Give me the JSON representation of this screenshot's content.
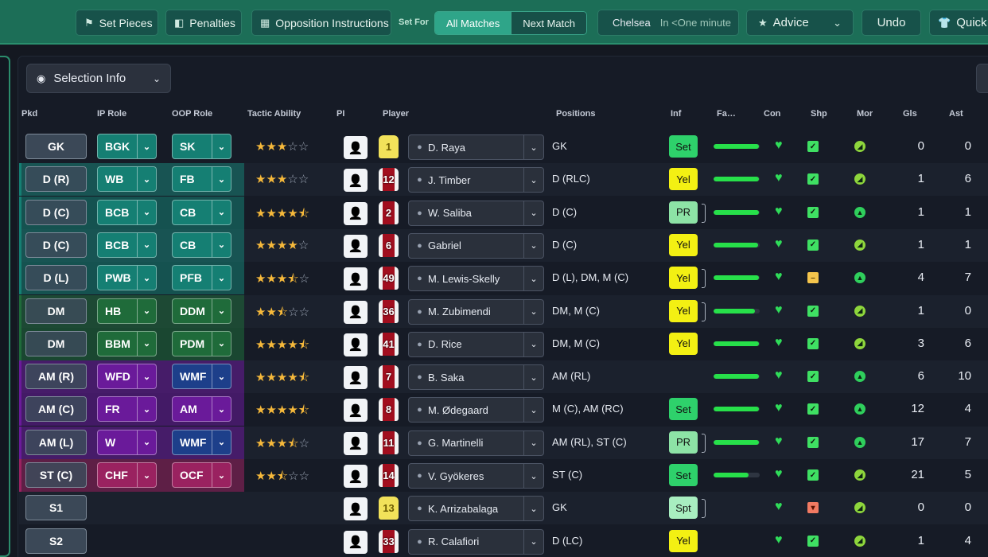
{
  "toolbar": {
    "set_pieces": "Set Pieces",
    "penalties": "Penalties",
    "opposition": "Opposition Instructions",
    "set_for": "Set For",
    "all_matches": "All Matches",
    "next_match": "Next Match",
    "opponent": "Chelsea",
    "opponent_time": "In <One minute",
    "advice": "Advice",
    "undo": "Undo",
    "quick": "Quick"
  },
  "selection_info": "Selection Info",
  "headers": {
    "pkd": "Pkd",
    "ip_role": "IP Role",
    "oop_role": "OOP Role",
    "tactic_ability": "Tactic Ability",
    "pi": "PI",
    "player": "Player",
    "positions": "Positions",
    "inf": "Inf",
    "fa": "Fa…",
    "con": "Con",
    "shp": "Shp",
    "mor": "Mor",
    "gls": "Gls",
    "ast": "Ast"
  },
  "colors": {
    "defence": "#157f73",
    "midfield": "#1f6b3a",
    "attack": "#6a1a9a",
    "striker": "#9a2260",
    "oop_attack": "#1d3f8a"
  },
  "rows": [
    {
      "pkd": "GK",
      "ip": "BGK",
      "oop": "SK",
      "stars": 3,
      "shirt": "1",
      "gk": true,
      "name": "D. Raya",
      "positions": "GK",
      "inf": "Set",
      "fitness": 0.98,
      "shape": "good",
      "morale": "g",
      "gls": "0",
      "ast": "0"
    },
    {
      "pkd": "D (R)",
      "ip": "WB",
      "oop": "FB",
      "stars": 3,
      "shirt": "12",
      "name": "J. Timber",
      "positions": "D (RLC)",
      "inf": "Yel",
      "fitness": 0.98,
      "shape": "good",
      "morale": "g",
      "gls": "1",
      "ast": "6"
    },
    {
      "pkd": "D (C)",
      "ip": "BCB",
      "oop": "CB",
      "stars": 4.5,
      "shirt": "2",
      "name": "W. Saliba",
      "positions": "D (C)",
      "inf": "PR",
      "fitness": 0.98,
      "shape": "good",
      "morale": "s",
      "gls": "1",
      "ast": "1"
    },
    {
      "pkd": "D (C)",
      "ip": "BCB",
      "oop": "CB",
      "stars": 4,
      "shirt": "6",
      "name": "Gabriel",
      "positions": "D (C)",
      "inf": "Yel",
      "fitness": 0.96,
      "shape": "good",
      "morale": "g",
      "gls": "1",
      "ast": "1"
    },
    {
      "pkd": "D (L)",
      "ip": "PWB",
      "oop": "PFB",
      "stars": 3.5,
      "shirt": "49",
      "name": "M. Lewis-Skelly",
      "positions": "D (L), DM, M (C)",
      "inf": "Yel",
      "fitness": 0.98,
      "shape": "avg",
      "morale": "s",
      "gls": "4",
      "ast": "7"
    },
    {
      "pkd": "DM",
      "ip": "HB",
      "oop": "DDM",
      "stars": 2.5,
      "shirt": "36",
      "name": "M. Zubimendi",
      "positions": "DM, M (C)",
      "inf": "Yel",
      "fitness": 0.9,
      "shape": "good",
      "morale": "g",
      "gls": "1",
      "ast": "0"
    },
    {
      "pkd": "DM",
      "ip": "BBM",
      "oop": "PDM",
      "stars": 4.5,
      "shirt": "41",
      "name": "D. Rice",
      "positions": "DM, M (C)",
      "inf": "Yel",
      "fitness": 0.98,
      "shape": "good",
      "morale": "g",
      "gls": "3",
      "ast": "6"
    },
    {
      "pkd": "AM (R)",
      "ip": "WFD",
      "oop": "WMF",
      "stars": 4.5,
      "shirt": "7",
      "name": "B. Saka",
      "positions": "AM (RL)",
      "inf": "",
      "fitness": 0.98,
      "shape": "good",
      "morale": "s",
      "gls": "6",
      "ast": "10"
    },
    {
      "pkd": "AM (C)",
      "ip": "FR",
      "oop": "AM",
      "stars": 4.5,
      "shirt": "8",
      "name": "M. Ødegaard",
      "positions": "M (C), AM (RC)",
      "inf": "Set",
      "fitness": 0.98,
      "shape": "good",
      "morale": "s",
      "gls": "12",
      "ast": "4"
    },
    {
      "pkd": "AM (L)",
      "ip": "W",
      "oop": "WMF",
      "stars": 3.5,
      "shirt": "11",
      "name": "G. Martinelli",
      "positions": "AM (RL), ST (C)",
      "inf": "PR",
      "fitness": 0.98,
      "shape": "good",
      "morale": "s",
      "gls": "17",
      "ast": "7"
    },
    {
      "pkd": "ST (C)",
      "ip": "CHF",
      "oop": "OCF",
      "stars": 2.5,
      "shirt": "14",
      "name": "V. Gyökeres",
      "positions": "ST (C)",
      "inf": "Set",
      "fitness": 0.75,
      "shape": "good",
      "morale": "g",
      "gls": "21",
      "ast": "5"
    },
    {
      "pkd": "S1",
      "ip": "",
      "oop": "",
      "stars": 0,
      "shirt": "13",
      "gk": true,
      "name": "K. Arrizabalaga",
      "positions": "GK",
      "inf": "Spt",
      "fitness": 0,
      "shape": "bad",
      "morale": "g",
      "gls": "0",
      "ast": "0"
    },
    {
      "pkd": "S2",
      "ip": "",
      "oop": "",
      "stars": 0,
      "shirt": "33",
      "name": "R. Calafiori",
      "positions": "D (LC)",
      "inf": "Yel",
      "fitness": 0,
      "shape": "good",
      "morale": "g",
      "gls": "1",
      "ast": "4"
    }
  ]
}
